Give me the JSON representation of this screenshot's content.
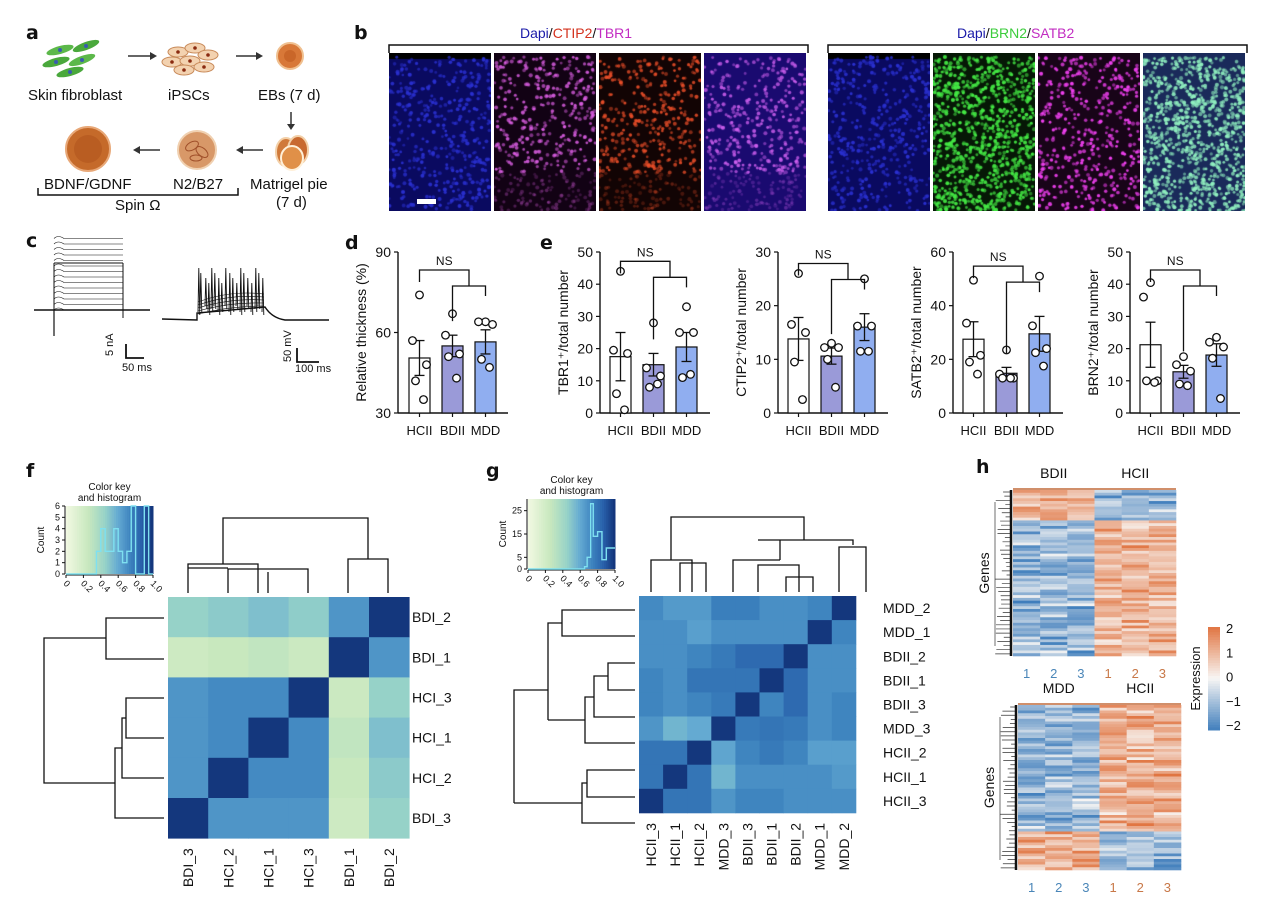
{
  "panels": {
    "a": {
      "label": "a",
      "steps": [
        "Skin fibroblast",
        "iPSCs",
        "EBs (7 d)",
        "Matrigel pie",
        "(7 d)",
        "N2/B27",
        "BDNF/GDNF"
      ],
      "bracket_label": "Spin Ω"
    },
    "b": {
      "label": "b",
      "group1": {
        "parts": [
          "Dapi",
          "/",
          "CTIP2",
          "/",
          "TBR1"
        ],
        "colors": [
          "#1a1aa8",
          "#111111",
          "#d4321e",
          "#111111",
          "#c22cc2"
        ]
      },
      "group2": {
        "parts": [
          "Dapi",
          "/",
          "BRN2",
          "/",
          "SATB2"
        ],
        "colors": [
          "#1a1aa8",
          "#111111",
          "#3ccc3c",
          "#111111",
          "#c22cc2"
        ]
      },
      "images": [
        {
          "name": "dapi-ctip2-tbr1-dapi",
          "base": "#0a0a60",
          "dots": "#2a30d0"
        },
        {
          "name": "dapi-ctip2-tbr1-tbr1",
          "base": "#120214",
          "dots": "#e060e8"
        },
        {
          "name": "dapi-ctip2-tbr1-ctip2",
          "base": "#120404",
          "dots": "#f0502a"
        },
        {
          "name": "dapi-ctip2-tbr1-merge",
          "base": "#1a0a70",
          "dots": "#d060f0"
        },
        {
          "name": "dapi-brn2-satb2-dapi",
          "base": "#0a0a60",
          "dots": "#2a30d0"
        },
        {
          "name": "dapi-brn2-satb2-brn2",
          "base": "#061806",
          "dots": "#44e844"
        },
        {
          "name": "dapi-brn2-satb2-satb2",
          "base": "#180418",
          "dots": "#f040f0"
        },
        {
          "name": "dapi-brn2-satb2-merge",
          "base": "#1a2a5a",
          "dots": "#90f0c0"
        }
      ]
    },
    "c": {
      "label": "c",
      "scale1": {
        "y": "5 nA",
        "x": "50 ms"
      },
      "scale2": {
        "y": "50 mV",
        "x": "100 ms"
      }
    },
    "d": {
      "label": "d"
    },
    "e": {
      "label": "e"
    },
    "f": {
      "label": "f",
      "key_title": [
        "Color key",
        "and histogram"
      ],
      "count_label": "Count"
    },
    "g": {
      "label": "g",
      "key_title": [
        "Color key",
        "and histogram"
      ],
      "count_label": "Count"
    },
    "h": {
      "label": "h",
      "top": {
        "groups": [
          "BDII",
          "HCII"
        ],
        "ylabel": "Genes",
        "samples": [
          "1",
          "2",
          "3",
          "1",
          "2",
          "3"
        ]
      },
      "bottom": {
        "groups": [
          "MDD",
          "HCII"
        ],
        "ylabel": "Genes",
        "samples": [
          "1",
          "2",
          "3",
          "1",
          "2",
          "3"
        ]
      },
      "legend": {
        "title": "Expression",
        "ticks": [
          "2",
          "1",
          "0",
          "−1",
          "−2"
        ]
      }
    }
  },
  "chart_data": [
    {
      "id": "d",
      "type": "bar",
      "title": "",
      "xlabel": "",
      "ylabel": "Relative thickness (%)",
      "categories": [
        "HCII",
        "BDII",
        "MDD"
      ],
      "values": [
        50.5,
        55,
        56.5
      ],
      "errors": [
        6.5,
        4,
        4.5
      ],
      "points": [
        [
          74,
          57,
          48,
          42,
          35
        ],
        [
          67,
          59,
          52,
          51,
          43
        ],
        [
          64,
          64,
          63,
          50,
          47
        ]
      ],
      "ylim": [
        30,
        90
      ],
      "yticks": [
        30,
        60,
        90
      ],
      "significance": "NS",
      "colors": [
        "#ffffff",
        "#9a9ad8",
        "#90aef0"
      ]
    },
    {
      "id": "e1",
      "type": "bar",
      "ylabel": "TBR1⁺/total number",
      "categories": [
        "HCII",
        "BDII",
        "MDD"
      ],
      "values": [
        17.5,
        15,
        20.5
      ],
      "errors": [
        7.5,
        3.5,
        4.5
      ],
      "points": [
        [
          44,
          19.5,
          18.5,
          6,
          1
        ],
        [
          28,
          14,
          11.5,
          8,
          9
        ],
        [
          33,
          25,
          25,
          11,
          12
        ]
      ],
      "ylim": [
        0,
        50
      ],
      "yticks": [
        0,
        10,
        20,
        30,
        40,
        50
      ],
      "significance": "NS",
      "colors": [
        "#ffffff",
        "#9a9ad8",
        "#90aef0"
      ]
    },
    {
      "id": "e2",
      "type": "bar",
      "ylabel": "CTIP2⁺/total number",
      "categories": [
        "HCII",
        "BDII",
        "MDD"
      ],
      "values": [
        13.8,
        10.6,
        16
      ],
      "errors": [
        4,
        1.5,
        2.5
      ],
      "points": [
        [
          26,
          16.5,
          15,
          9.5,
          2.5
        ],
        [
          13,
          12.2,
          12.2,
          10,
          4.8
        ],
        [
          25,
          16.2,
          16.2,
          11.5,
          11.5
        ]
      ],
      "ylim": [
        0,
        30
      ],
      "yticks": [
        0,
        10,
        20,
        30
      ],
      "significance": "NS",
      "colors": [
        "#ffffff",
        "#9a9ad8",
        "#90aef0"
      ]
    },
    {
      "id": "e3",
      "type": "bar",
      "ylabel": "SATB2⁺/total number",
      "categories": [
        "HCII",
        "BDII",
        "MDD"
      ],
      "values": [
        27.5,
        14.8,
        29.5
      ],
      "errors": [
        6.5,
        2.2,
        6.5
      ],
      "points": [
        [
          49.5,
          33.5,
          21.5,
          19,
          14.5
        ],
        [
          23.5,
          14.5,
          13,
          13,
          13
        ],
        [
          51,
          32.5,
          24,
          22.5,
          17.5
        ]
      ],
      "ylim": [
        0,
        60
      ],
      "yticks": [
        0,
        20,
        40,
        60
      ],
      "significance": "NS",
      "colors": [
        "#ffffff",
        "#9a9ad8",
        "#90aef0"
      ]
    },
    {
      "id": "e4",
      "type": "bar",
      "ylabel": "BRN2⁺/total number",
      "categories": [
        "HCII",
        "BDII",
        "MDD"
      ],
      "values": [
        21.2,
        12.8,
        18
      ],
      "errors": [
        7,
        2,
        3.5
      ],
      "points": [
        [
          40.5,
          36,
          10,
          10,
          9.5
        ],
        [
          17.5,
          15,
          13,
          9,
          8.5
        ],
        [
          23.5,
          22,
          20.5,
          17,
          4.5
        ]
      ],
      "ylim": [
        0,
        50
      ],
      "yticks": [
        0,
        10,
        20,
        30,
        40,
        50
      ],
      "significance": "NS",
      "colors": [
        "#ffffff",
        "#9a9ad8",
        "#90aef0"
      ]
    },
    {
      "id": "f",
      "type": "heatmap",
      "title": "",
      "rows": [
        "BDI_2",
        "BDI_1",
        "HCI_3",
        "HCI_1",
        "HCI_2",
        "BDI_3"
      ],
      "cols": [
        "BDI_3",
        "HCI_2",
        "HCI_1",
        "HCI_3",
        "BDI_1",
        "BDI_2"
      ],
      "values": [
        [
          0.45,
          0.48,
          0.52,
          0.47,
          0.68,
          1.0
        ],
        [
          0.22,
          0.25,
          0.28,
          0.23,
          1.0,
          0.68
        ],
        [
          0.68,
          0.72,
          0.72,
          1.0,
          0.23,
          0.45
        ],
        [
          0.68,
          0.72,
          1.0,
          0.72,
          0.28,
          0.52
        ],
        [
          0.68,
          1.0,
          0.72,
          0.72,
          0.25,
          0.48
        ],
        [
          1.0,
          0.68,
          0.68,
          0.68,
          0.22,
          0.45
        ]
      ],
      "color_range": [
        0,
        1
      ],
      "key": {
        "xticks": [
          "0",
          "0.2",
          "0.4",
          "0.6",
          "0.8",
          "1.0"
        ],
        "yticks": [
          "0",
          "1",
          "2",
          "3",
          "4",
          "5",
          "6"
        ],
        "ylim": [
          0,
          6
        ],
        "hist_x": [
          0,
          0.35,
          0.4,
          0.45,
          0.5,
          0.55,
          0.6,
          0.65,
          0.7,
          0.75,
          0.8,
          0.85,
          0.9,
          0.95,
          1.0
        ],
        "hist_counts": [
          0,
          2,
          4,
          2,
          2,
          4,
          2,
          1,
          2,
          6,
          0,
          0,
          6,
          0
        ]
      }
    },
    {
      "id": "g",
      "type": "heatmap",
      "rows": [
        "MDD_2",
        "MDD_1",
        "BDII_2",
        "BDII_1",
        "BDII_3",
        "MDD_3",
        "HCII_2",
        "HCII_1",
        "HCII_3"
      ],
      "cols": [
        "HCII_3",
        "HCII_1",
        "HCII_2",
        "MDD_3",
        "BDII_3",
        "BDII_1",
        "BDII_2",
        "MDD_1",
        "MDD_2"
      ],
      "values": [
        [
          0.72,
          0.66,
          0.66,
          0.76,
          0.76,
          0.7,
          0.7,
          0.74,
          1.0
        ],
        [
          0.7,
          0.7,
          0.64,
          0.7,
          0.7,
          0.7,
          0.7,
          1.0,
          0.74
        ],
        [
          0.7,
          0.7,
          0.74,
          0.78,
          0.84,
          0.84,
          1.0,
          0.7,
          0.7
        ],
        [
          0.74,
          0.7,
          0.8,
          0.8,
          0.8,
          1.0,
          0.84,
          0.7,
          0.7
        ],
        [
          0.74,
          0.7,
          0.74,
          0.78,
          1.0,
          0.74,
          0.84,
          0.7,
          0.74
        ],
        [
          0.68,
          0.56,
          0.6,
          1.0,
          0.78,
          0.8,
          0.78,
          0.7,
          0.74
        ],
        [
          0.8,
          0.8,
          1.0,
          0.62,
          0.74,
          0.78,
          0.74,
          0.64,
          0.64
        ],
        [
          0.8,
          1.0,
          0.8,
          0.56,
          0.7,
          0.7,
          0.7,
          0.7,
          0.66
        ],
        [
          1.0,
          0.8,
          0.8,
          0.68,
          0.74,
          0.74,
          0.7,
          0.7,
          0.7
        ]
      ],
      "color_range": [
        0,
        1
      ],
      "key": {
        "xticks": [
          "0",
          "0.2",
          "0.4",
          "0.6",
          "0.8",
          "1.0"
        ],
        "yticks": [
          "0",
          "5",
          "15",
          "25"
        ],
        "ylim": [
          0,
          30
        ],
        "hist_x": [
          0,
          0.65,
          0.68,
          0.72,
          0.75,
          0.8,
          0.85,
          0.9,
          0.95,
          1.0
        ],
        "hist_counts": [
          0,
          1,
          5,
          28,
          14,
          16,
          4,
          9,
          9
        ]
      }
    },
    {
      "id": "h-top",
      "type": "heatmap",
      "groups": [
        "BDII",
        "HCII"
      ],
      "cols": [
        "1",
        "2",
        "3",
        "1",
        "2",
        "3"
      ],
      "ylabel": "Genes",
      "color_range": [
        -2,
        2
      ],
      "legend_title": "Expression",
      "pattern": "BDII up / HCII down for top cluster; BDII down / HCII up for remaining genes"
    },
    {
      "id": "h-bottom",
      "type": "heatmap",
      "groups": [
        "MDD",
        "HCII"
      ],
      "cols": [
        "1",
        "2",
        "3",
        "1",
        "2",
        "3"
      ],
      "ylabel": "Genes",
      "color_range": [
        -2,
        2
      ],
      "legend_title": "Expression",
      "pattern": "MDD down / HCII up for most genes; MDD up / HCII down for bottom cluster"
    }
  ]
}
